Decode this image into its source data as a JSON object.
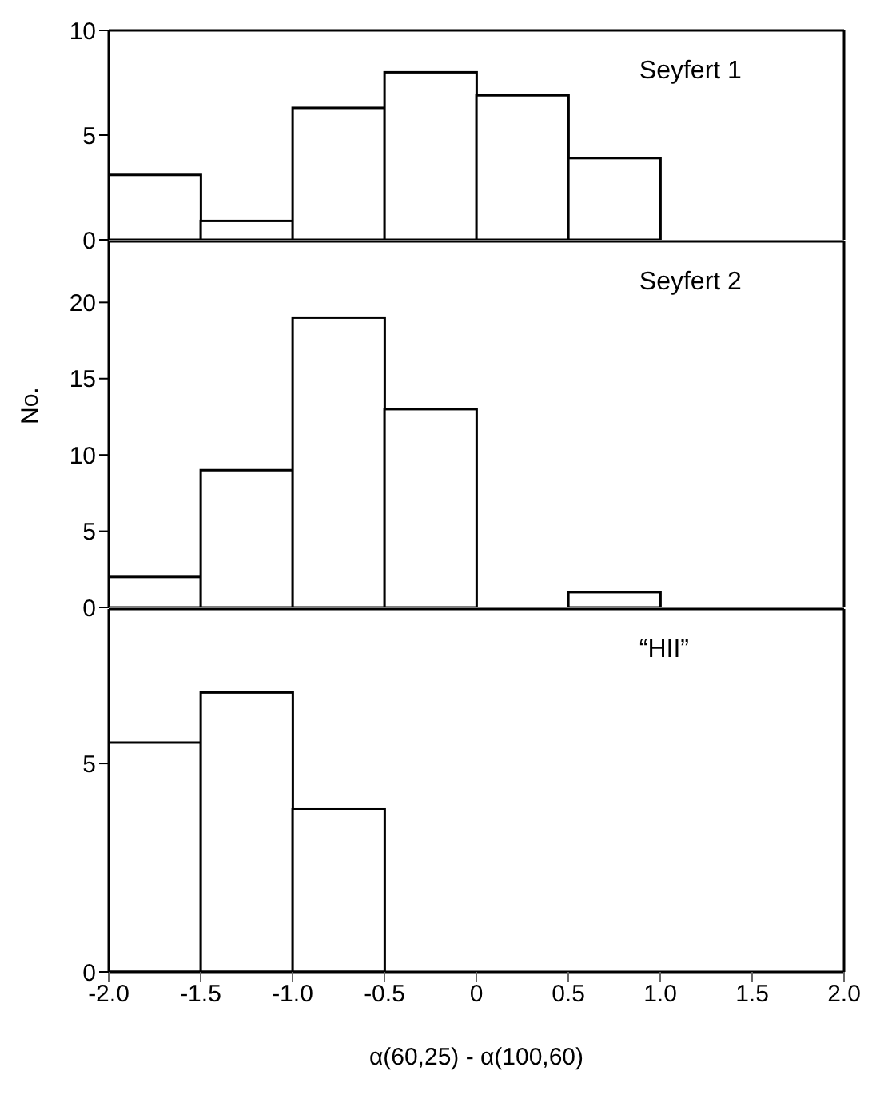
{
  "chart_data": [
    {
      "type": "histogram",
      "bins": [
        -2,
        -1.5,
        -1,
        -0.5,
        0,
        0.5,
        1,
        1.5,
        2
      ],
      "values": [
        3.1,
        0.9,
        6.3,
        8,
        6.9,
        3.9,
        0,
        0
      ],
      "color": "#ffffff",
      "xlim": [
        -2,
        2
      ],
      "ylim": [
        0,
        10
      ],
      "yticks": [
        0,
        5,
        10
      ],
      "tick_labels": "y",
      "annotations": [
        "Seyfert 1"
      ]
    },
    {
      "type": "histogram",
      "bins": [
        -2,
        -1.5,
        -1,
        -0.5,
        0,
        0.5,
        1,
        1.5,
        2
      ],
      "values": [
        2,
        9,
        19,
        13,
        0,
        1,
        0,
        0
      ],
      "color": "#ffffff",
      "xlim": [
        -2,
        2
      ],
      "ylim": [
        0,
        24
      ],
      "yticks": [
        0,
        5,
        10,
        15,
        20
      ],
      "tick_labels": "y",
      "ylabel": "No.",
      "annotations": [
        "Seyfert 2"
      ]
    },
    {
      "type": "histogram",
      "bins": [
        -2,
        -1.5,
        -1,
        -0.5,
        0,
        0.5,
        1,
        1.5,
        2
      ],
      "values": [
        5.5,
        6.7,
        3.9,
        0,
        0,
        0,
        0,
        0
      ],
      "color": "#ffffff",
      "xlim": [
        -2,
        2
      ],
      "ylim": [
        0,
        8.7
      ],
      "yticks": [
        0,
        5
      ],
      "xticks": [
        {
          "value": -2,
          "label": "-2.0"
        },
        {
          "value": -1.5,
          "label": "-1.5"
        },
        {
          "value": -1,
          "label": "-1.0"
        },
        {
          "value": -0.5,
          "label": "-0.5"
        },
        0,
        0.5,
        {
          "value": 1,
          "label": "1.0"
        },
        1.5,
        {
          "value": 2,
          "label": "2.0"
        }
      ],
      "xlabel": "α(60,25) - α(100,60)",
      "annotations": [
        "“HII”"
      ]
    }
  ]
}
